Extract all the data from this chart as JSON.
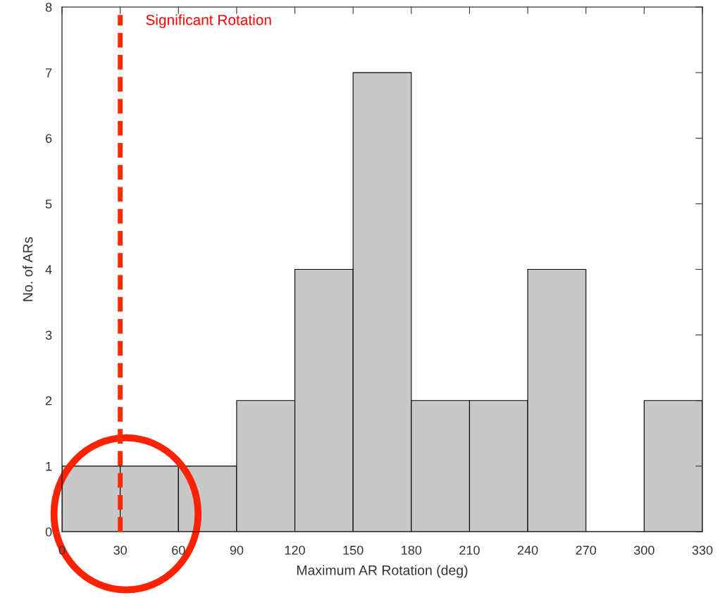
{
  "chart_data": {
    "type": "histogram",
    "xlabel": "Maximum AR Rotation (deg)",
    "ylabel": "No. of ARs",
    "bins": [
      0,
      30,
      60,
      90,
      120,
      150,
      180,
      210,
      240,
      270,
      300,
      330
    ],
    "values": [
      1,
      1,
      1,
      2,
      4,
      7,
      2,
      2,
      4,
      0,
      2
    ],
    "color": "#c8c8c8",
    "xlim": [
      0,
      330
    ],
    "xticks": [
      0,
      30,
      60,
      90,
      120,
      150,
      180,
      210,
      240,
      270,
      300,
      330
    ],
    "ylim": [
      0,
      8
    ],
    "yticks": [
      0,
      1,
      2,
      3,
      4,
      5,
      6,
      7,
      8
    ],
    "ref_lines": [
      {
        "axis": "x",
        "value": 30,
        "label": "Significant Rotation",
        "color": "#ff2a00",
        "line_style": "dashed"
      }
    ],
    "grid": false,
    "legend": false
  }
}
